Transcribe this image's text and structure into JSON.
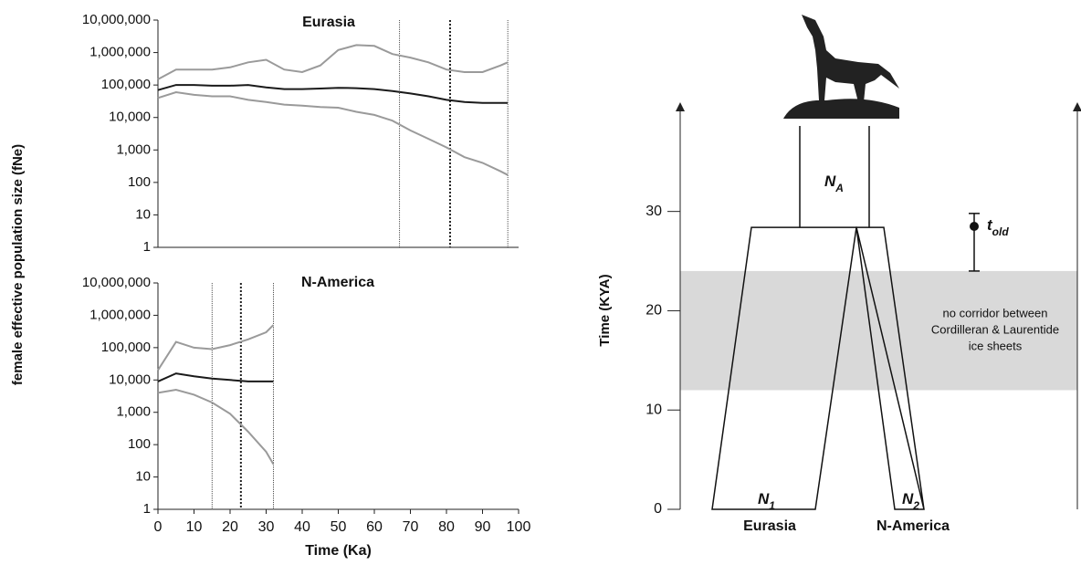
{
  "chart_data": [
    {
      "type": "line",
      "title": "Eurasia",
      "log_y": true,
      "ylim": [
        1,
        10000000
      ],
      "yticks": [
        1,
        10,
        100,
        {
          "value": 1000,
          "label": "1,000"
        },
        {
          "value": 10000,
          "label": "10,000"
        },
        {
          "value": 100000,
          "label": "100,000"
        },
        {
          "value": 1000000,
          "label": "1,000,000"
        },
        {
          "value": 10000000,
          "label": "10,000,000"
        }
      ],
      "ylabel": "female effective population size (fNe)",
      "xlim": [
        0,
        100
      ],
      "x": [
        0,
        5,
        10,
        15,
        20,
        25,
        30,
        35,
        40,
        45,
        50,
        55,
        60,
        65,
        70,
        75,
        80,
        85,
        90,
        95,
        97
      ],
      "series": [
        {
          "color": "#9a9a9a",
          "values": [
            150000,
            300000,
            300000,
            300000,
            350000,
            500000,
            600000,
            300000,
            250000,
            400000,
            1200000,
            1700000,
            1600000,
            900000,
            700000,
            500000,
            300000,
            250000,
            250000,
            400000,
            500000
          ]
        },
        {
          "color": "#9a9a9a",
          "values": [
            40000,
            60000,
            50000,
            45000,
            45000,
            35000,
            30000,
            25000,
            23000,
            21000,
            20000,
            15000,
            12000,
            8000,
            4000,
            2200,
            1200,
            600,
            400,
            220,
            170
          ]
        },
        {
          "color": "#1a1a1a",
          "values": [
            70000,
            100000,
            100000,
            95000,
            95000,
            100000,
            85000,
            75000,
            75000,
            78000,
            82000,
            80000,
            75000,
            65000,
            55000,
            45000,
            35000,
            30000,
            28000,
            28000,
            28000
          ]
        }
      ],
      "vlines": [
        {
          "x": 67,
          "style": "thin"
        },
        {
          "x": 81,
          "style": "bold"
        },
        {
          "x": 97,
          "style": "thin"
        }
      ]
    },
    {
      "type": "line",
      "title": "N-America",
      "log_y": true,
      "ylim": [
        1,
        10000000
      ],
      "yticks": [
        1,
        10,
        100,
        {
          "value": 1000,
          "label": "1,000"
        },
        {
          "value": 10000,
          "label": "10,000"
        },
        {
          "value": 100000,
          "label": "100,000"
        },
        {
          "value": 1000000,
          "label": "1,000,000"
        },
        {
          "value": 10000000,
          "label": "10,000,000"
        }
      ],
      "xlabel": "Time (Ka)",
      "xlim": [
        0,
        100
      ],
      "xticks": [
        0,
        10,
        20,
        30,
        40,
        50,
        60,
        70,
        80,
        90,
        100
      ],
      "x": [
        0,
        5,
        10,
        15,
        20,
        25,
        30,
        32
      ],
      "series": [
        {
          "color": "#9a9a9a",
          "values": [
            20000,
            150000,
            100000,
            90000,
            120000,
            180000,
            300000,
            500000
          ]
        },
        {
          "color": "#9a9a9a",
          "values": [
            4000,
            5000,
            3500,
            2000,
            900,
            250,
            60,
            25
          ]
        },
        {
          "color": "#1a1a1a",
          "values": [
            9000,
            16000,
            13000,
            11000,
            10000,
            9000,
            9000,
            9000
          ]
        }
      ],
      "vlines": [
        {
          "x": 15,
          "style": "thin"
        },
        {
          "x": 23,
          "style": "bold"
        },
        {
          "x": 32,
          "style": "thin"
        }
      ]
    },
    {
      "type": "model",
      "ylabel": "Time (KYA)",
      "ylim": [
        0,
        41
      ],
      "yticks": [
        0,
        10,
        20,
        30
      ],
      "band": {
        "from": 12,
        "to": 24,
        "color": "#d9d9d9",
        "text": [
          "no corridor between",
          "Cordilleran & Laurentide",
          "ice sheets"
        ]
      },
      "divergence": 28.4,
      "t_old": {
        "label": "t",
        "label_sub": "old",
        "value": 28.5,
        "low": 24,
        "high": 29.8
      },
      "populations": [
        {
          "label": "N",
          "sub": "A"
        },
        {
          "label": "N",
          "sub": "1",
          "name": "Eurasia"
        },
        {
          "label": "N",
          "sub": "2",
          "name": "N-America"
        }
      ]
    }
  ]
}
